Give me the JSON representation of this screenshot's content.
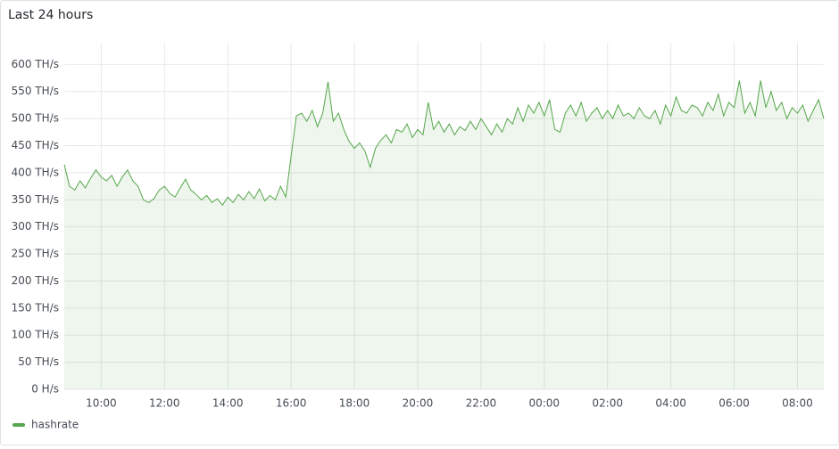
{
  "chart_data": {
    "type": "line",
    "title": "Last 24 hours",
    "x": [
      "08:50",
      "09:00",
      "09:10",
      "09:20",
      "09:30",
      "09:40",
      "09:50",
      "10:00",
      "10:10",
      "10:20",
      "10:30",
      "10:40",
      "10:50",
      "11:00",
      "11:10",
      "11:20",
      "11:30",
      "11:40",
      "11:50",
      "12:00",
      "12:10",
      "12:20",
      "12:30",
      "12:40",
      "12:50",
      "13:00",
      "13:10",
      "13:20",
      "13:30",
      "13:40",
      "13:50",
      "14:00",
      "14:10",
      "14:20",
      "14:30",
      "14:40",
      "14:50",
      "15:00",
      "15:10",
      "15:20",
      "15:30",
      "15:40",
      "15:50",
      "16:00",
      "16:10",
      "16:20",
      "16:30",
      "16:40",
      "16:50",
      "17:00",
      "17:10",
      "17:20",
      "17:30",
      "17:40",
      "17:50",
      "18:00",
      "18:10",
      "18:20",
      "18:30",
      "18:40",
      "18:50",
      "19:00",
      "19:10",
      "19:20",
      "19:30",
      "19:40",
      "19:50",
      "20:00",
      "20:10",
      "20:20",
      "20:30",
      "20:40",
      "20:50",
      "21:00",
      "21:10",
      "21:20",
      "21:30",
      "21:40",
      "21:50",
      "22:00",
      "22:10",
      "22:20",
      "22:30",
      "22:40",
      "22:50",
      "23:00",
      "23:10",
      "23:20",
      "23:30",
      "23:40",
      "23:50",
      "00:00",
      "00:10",
      "00:20",
      "00:30",
      "00:40",
      "00:50",
      "01:00",
      "01:10",
      "01:20",
      "01:30",
      "01:40",
      "01:50",
      "02:00",
      "02:10",
      "02:20",
      "02:30",
      "02:40",
      "02:50",
      "03:00",
      "03:10",
      "03:20",
      "03:30",
      "03:40",
      "03:50",
      "04:00",
      "04:10",
      "04:20",
      "04:30",
      "04:40",
      "04:50",
      "05:00",
      "05:10",
      "05:20",
      "05:30",
      "05:40",
      "05:50",
      "06:00",
      "06:10",
      "06:20",
      "06:30",
      "06:40",
      "06:50",
      "07:00",
      "07:10",
      "07:20",
      "07:30",
      "07:40",
      "07:50",
      "08:00",
      "08:10",
      "08:20",
      "08:30",
      "08:40",
      "08:50"
    ],
    "series": [
      {
        "name": "hashrate",
        "color": "#56a64b",
        "values": [
          415,
          375,
          368,
          385,
          372,
          390,
          405,
          392,
          385,
          395,
          375,
          392,
          405,
          385,
          375,
          350,
          345,
          352,
          368,
          375,
          362,
          355,
          372,
          388,
          368,
          360,
          350,
          358,
          345,
          352,
          340,
          355,
          345,
          360,
          350,
          365,
          352,
          370,
          348,
          358,
          350,
          375,
          355,
          430,
          505,
          510,
          495,
          515,
          485,
          510,
          568,
          495,
          510,
          480,
          458,
          445,
          455,
          440,
          410,
          445,
          460,
          470,
          455,
          480,
          475,
          490,
          465,
          480,
          470,
          530,
          480,
          495,
          475,
          490,
          470,
          485,
          478,
          495,
          480,
          500,
          485,
          470,
          490,
          475,
          500,
          490,
          520,
          495,
          525,
          510,
          530,
          505,
          535,
          480,
          475,
          510,
          525,
          505,
          530,
          495,
          510,
          520,
          500,
          515,
          500,
          525,
          505,
          510,
          500,
          520,
          505,
          500,
          515,
          490,
          525,
          505,
          540,
          515,
          510,
          525,
          520,
          505,
          530,
          515,
          545,
          505,
          530,
          520,
          570,
          510,
          530,
          505,
          570,
          520,
          550,
          515,
          530,
          500,
          520,
          510,
          525,
          495,
          515,
          535,
          500
        ]
      }
    ],
    "ylim": [
      0,
      640
    ],
    "yticks": [
      {
        "value": 0,
        "label": "0 H/s"
      },
      {
        "value": 50,
        "label": "50 TH/s"
      },
      {
        "value": 100,
        "label": "100 TH/s"
      },
      {
        "value": 150,
        "label": "150 TH/s"
      },
      {
        "value": 200,
        "label": "200 TH/s"
      },
      {
        "value": 250,
        "label": "250 TH/s"
      },
      {
        "value": 300,
        "label": "300 TH/s"
      },
      {
        "value": 350,
        "label": "350 TH/s"
      },
      {
        "value": 400,
        "label": "400 TH/s"
      },
      {
        "value": 450,
        "label": "450 TH/s"
      },
      {
        "value": 500,
        "label": "500 TH/s"
      },
      {
        "value": 550,
        "label": "550 TH/s"
      },
      {
        "value": 600,
        "label": "600 TH/s"
      }
    ],
    "xticks": [
      "10:00",
      "12:00",
      "14:00",
      "16:00",
      "18:00",
      "20:00",
      "22:00",
      "00:00",
      "02:00",
      "04:00",
      "06:00",
      "08:00"
    ],
    "grid": true,
    "legend": "bottom-left"
  }
}
